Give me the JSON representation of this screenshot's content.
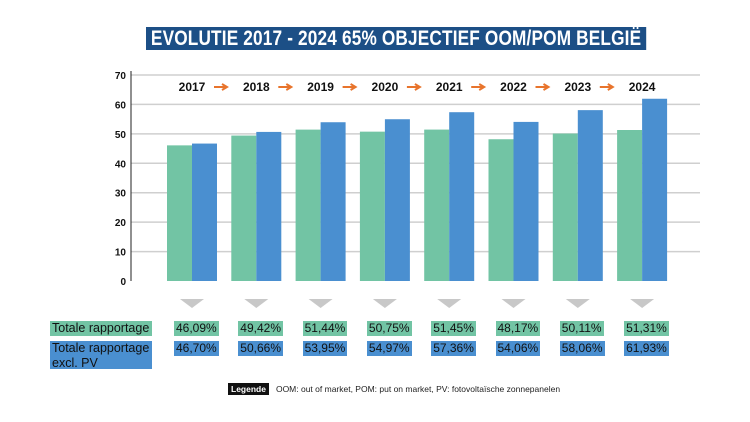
{
  "chart_data": {
    "type": "bar",
    "title": "EVOLUTIE 2017 - 2024 65% OBJECTIEF OOM/POM BELGIË",
    "categories": [
      "2017",
      "2018",
      "2019",
      "2020",
      "2021",
      "2022",
      "2023",
      "2024"
    ],
    "ylim": [
      0,
      70
    ],
    "yticks": [
      0,
      10,
      20,
      30,
      40,
      50,
      60,
      70
    ],
    "grid": true,
    "colors": {
      "totale": "#72c4a4",
      "excl_pv": "#4a8fd0",
      "arrow": "#e8742c",
      "title_bg": "#1c4f86"
    },
    "series": [
      {
        "name": "Totale rapportage",
        "values": [
          46.09,
          49.42,
          51.44,
          50.75,
          51.45,
          48.17,
          50.11,
          51.31
        ],
        "labels": [
          "46,09%",
          "49,42%",
          "51,44%",
          "50,75%",
          "51,45%",
          "48,17%",
          "50,11%",
          "51,31%"
        ]
      },
      {
        "name": "Totale rapportage excl. PV",
        "values": [
          46.7,
          50.66,
          53.95,
          54.97,
          57.36,
          54.06,
          58.06,
          61.93
        ],
        "labels": [
          "46,70%",
          "50,66%",
          "53,95%",
          "54,97%",
          "57,36%",
          "54,06%",
          "58,06%",
          "61,93%"
        ]
      }
    ]
  },
  "row_labels": {
    "totale": "Totale rapportage",
    "excl_pv_1": "Totale rapportage",
    "excl_pv_2": "excl. PV"
  },
  "legend": {
    "tag": "Legende",
    "text": "OOM: out of market, POM: put on market, PV: fotovoltaïsche zonnepanelen"
  }
}
